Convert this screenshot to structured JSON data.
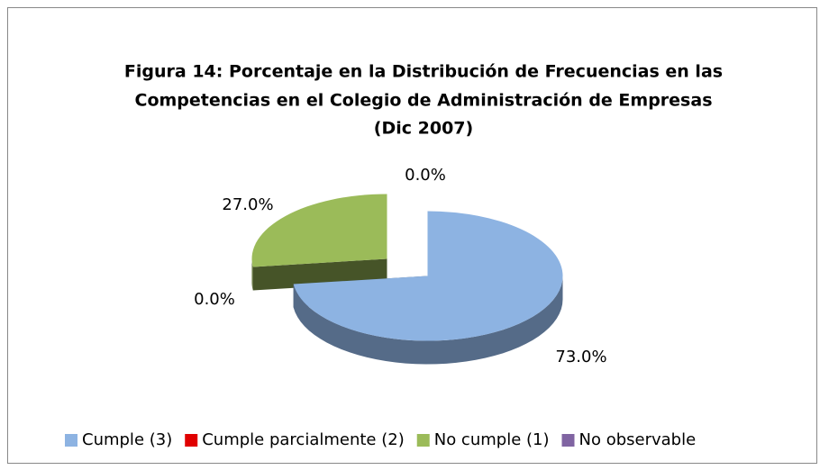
{
  "chart_data": {
    "type": "pie3d",
    "title": [
      "Figura 14: Porcentaje en la Distribución de Frecuencias en las",
      "Competencias en el Colegio de Administración de Empresas",
      "(Dic 2007)"
    ],
    "categories": [
      "Cumple (3)",
      "Cumple parcialmente (2)",
      "No cumple (1)",
      "No observable"
    ],
    "values": [
      73,
      0,
      27,
      0
    ],
    "value_labels": [
      "73.0%",
      "0.0%",
      "27.0%",
      "0.0%"
    ],
    "colors": [
      "#8db3e2",
      "#e00000",
      "#9bbb59",
      "#8064a2"
    ],
    "legend": "bottom"
  }
}
